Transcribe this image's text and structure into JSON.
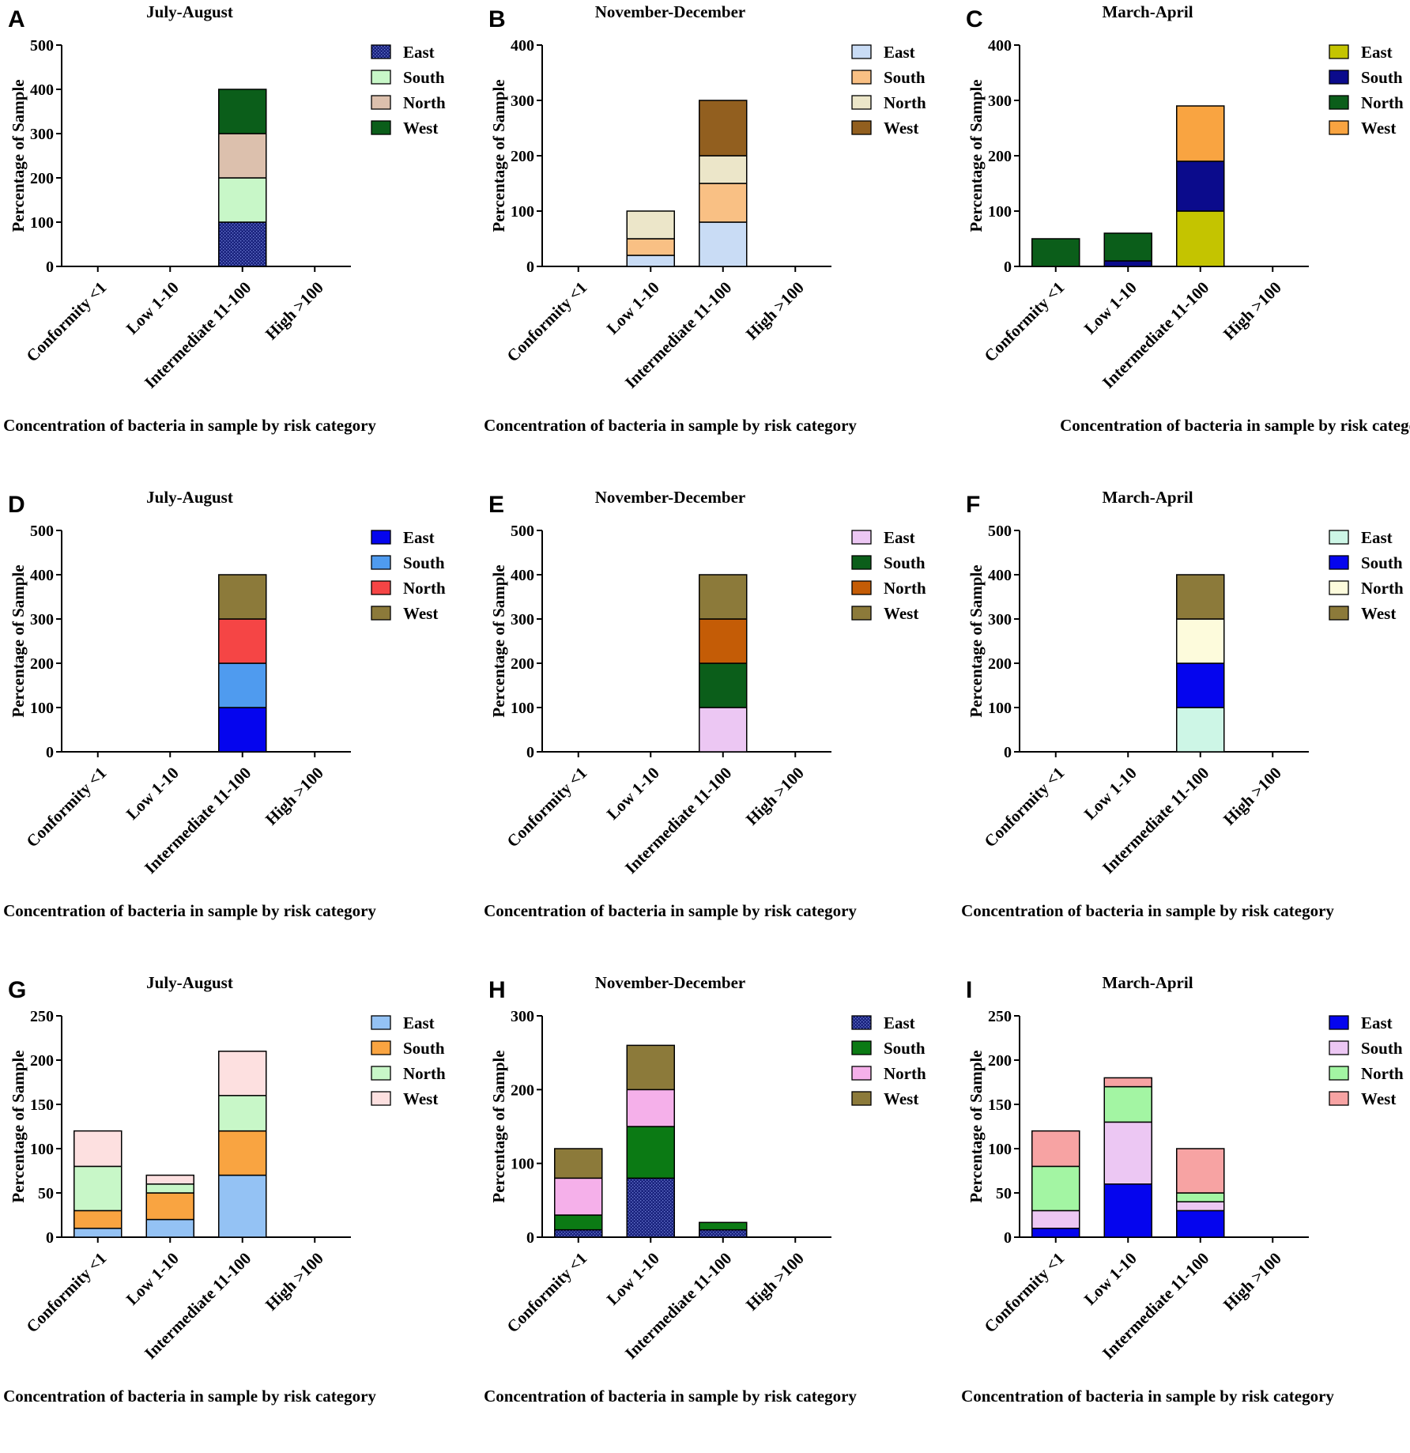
{
  "chart_data": [
    {
      "letter": "A",
      "type": "bar",
      "stacked": true,
      "title": "July-August",
      "xlabel": "Concentration of bacteria in sample by risk category",
      "ylabel": "Percentage of Sample",
      "ylim": [
        0,
        500
      ],
      "yticks": [
        "0",
        "100",
        "200",
        "300",
        "400",
        "500"
      ],
      "categories": [
        "Conformity <1",
        "Low 1-10",
        "Intermediate 11-100",
        "High >100"
      ],
      "legend_position": "top-right",
      "series": [
        {
          "name": "East",
          "color": "#1a237e",
          "pattern": "dots",
          "values": [
            0,
            0,
            100,
            0
          ]
        },
        {
          "name": "South",
          "color": "#c8f7c8",
          "values": [
            0,
            0,
            100,
            0
          ]
        },
        {
          "name": "North",
          "color": "#dcc0ad",
          "values": [
            0,
            0,
            100,
            0
          ]
        },
        {
          "name": "West",
          "color": "#0b5e1a",
          "values": [
            0,
            0,
            100,
            0
          ]
        }
      ]
    },
    {
      "letter": "B",
      "type": "bar",
      "stacked": true,
      "title": "November-December",
      "xlabel": "Concentration of bacteria in sample by risk category",
      "ylabel": "Percentage of Sample",
      "ylim": [
        0,
        400
      ],
      "yticks": [
        "0",
        "100",
        "200",
        "300",
        "400"
      ],
      "categories": [
        "Conformity <1",
        "Low 1-10",
        "Intermediate 11-100",
        "High >100"
      ],
      "legend_position": "top-right",
      "series": [
        {
          "name": "East",
          "color": "#c9dcf5",
          "values": [
            0,
            20,
            80,
            0
          ]
        },
        {
          "name": "South",
          "color": "#f9c084",
          "values": [
            0,
            30,
            70,
            0
          ]
        },
        {
          "name": "North",
          "color": "#ece6c9",
          "values": [
            0,
            50,
            50,
            0
          ]
        },
        {
          "name": "West",
          "color": "#925f1f",
          "values": [
            0,
            0,
            100,
            0
          ]
        }
      ]
    },
    {
      "letter": "C",
      "type": "bar",
      "stacked": true,
      "title": "March-April",
      "xlabel": "Concentration of bacteria in sample by risk category",
      "ylabel": "Percentage of Sample",
      "ylim": [
        0,
        400
      ],
      "yticks": [
        "0",
        "100",
        "200",
        "300",
        "400"
      ],
      "categories": [
        "Conformity <1",
        "Low 1-10",
        "Intermediate 11-100",
        "High >100"
      ],
      "legend_position": "top-right",
      "series": [
        {
          "name": "East",
          "color": "#c4c400",
          "values": [
            0,
            0,
            100,
            0
          ]
        },
        {
          "name": "South",
          "color": "#0b0b8c",
          "values": [
            0,
            10,
            90,
            0
          ]
        },
        {
          "name": "North",
          "color": "#0b5e1a",
          "values": [
            50,
            50,
            0,
            0
          ]
        },
        {
          "name": "West",
          "color": "#f9a441",
          "values": [
            0,
            0,
            100,
            0
          ]
        }
      ]
    },
    {
      "letter": "D",
      "type": "bar",
      "stacked": true,
      "title": "July-August",
      "xlabel": "Concentration of bacteria in sample by risk category",
      "ylabel": "Percentage of Sample",
      "ylim": [
        0,
        500
      ],
      "yticks": [
        "0",
        "100",
        "200",
        "300",
        "400",
        "500"
      ],
      "categories": [
        "Conformity <1",
        "Low 1-10",
        "Intermediate 11-100",
        "High >100"
      ],
      "legend_position": "top-right",
      "series": [
        {
          "name": "East",
          "color": "#0505ee",
          "values": [
            0,
            0,
            100,
            0
          ]
        },
        {
          "name": "South",
          "color": "#4f9bef",
          "values": [
            0,
            0,
            100,
            0
          ]
        },
        {
          "name": "North",
          "color": "#f54545",
          "values": [
            0,
            0,
            100,
            0
          ]
        },
        {
          "name": "West",
          "color": "#8c7a3a",
          "values": [
            0,
            0,
            100,
            0
          ]
        }
      ]
    },
    {
      "letter": "E",
      "type": "bar",
      "stacked": true,
      "title": "November-December",
      "xlabel": "Concentration of bacteria in sample by risk category",
      "ylabel": "Percentage of Sample",
      "ylim": [
        0,
        500
      ],
      "yticks": [
        "0",
        "100",
        "200",
        "300",
        "400",
        "500"
      ],
      "categories": [
        "Conformity <1",
        "Low 1-10",
        "Intermediate 11-100",
        "High >100"
      ],
      "legend_position": "top-right",
      "series": [
        {
          "name": "East",
          "color": "#ecc7f3",
          "values": [
            0,
            0,
            100,
            0
          ]
        },
        {
          "name": "South",
          "color": "#0b5e1a",
          "values": [
            0,
            0,
            100,
            0
          ]
        },
        {
          "name": "North",
          "color": "#c45c06",
          "values": [
            0,
            0,
            100,
            0
          ]
        },
        {
          "name": "West",
          "color": "#8c7a3a",
          "values": [
            0,
            0,
            100,
            0
          ]
        }
      ]
    },
    {
      "letter": "F",
      "type": "bar",
      "stacked": true,
      "title": "March-April",
      "xlabel": "Concentration of bacteria in sample by risk category",
      "ylabel": "Percentage of Sample",
      "ylim": [
        0,
        500
      ],
      "yticks": [
        "0",
        "100",
        "200",
        "300",
        "400",
        "500"
      ],
      "categories": [
        "Conformity <1",
        "Low 1-10",
        "Intermediate 11-100",
        "High >100"
      ],
      "legend_position": "top-right",
      "series": [
        {
          "name": "East",
          "color": "#cdf6e6",
          "values": [
            0,
            0,
            100,
            0
          ]
        },
        {
          "name": "South",
          "color": "#0505ee",
          "values": [
            0,
            0,
            100,
            0
          ]
        },
        {
          "name": "North",
          "color": "#fdfbdc",
          "values": [
            0,
            0,
            100,
            0
          ]
        },
        {
          "name": "West",
          "color": "#8c7a3a",
          "values": [
            0,
            0,
            100,
            0
          ]
        }
      ]
    },
    {
      "letter": "G",
      "type": "bar",
      "stacked": true,
      "title": "July-August",
      "xlabel": "Concentration of bacteria in sample by risk category",
      "ylabel": "Percentage of Sample",
      "ylim": [
        0,
        250
      ],
      "yticks": [
        "0",
        "50",
        "100",
        "150",
        "200",
        "250"
      ],
      "categories": [
        "Conformity <1",
        "Low 1-10",
        "Intermediate 11-100",
        "High >100"
      ],
      "legend_position": "top-right",
      "series": [
        {
          "name": "East",
          "color": "#94c2f4",
          "values": [
            10,
            20,
            70,
            0
          ]
        },
        {
          "name": "South",
          "color": "#f9a441",
          "values": [
            20,
            30,
            50,
            0
          ]
        },
        {
          "name": "North",
          "color": "#c8f7c8",
          "values": [
            50,
            10,
            40,
            0
          ]
        },
        {
          "name": "West",
          "color": "#fde0e0",
          "values": [
            40,
            10,
            50,
            0
          ]
        }
      ]
    },
    {
      "letter": "H",
      "type": "bar",
      "stacked": true,
      "title": "November-December",
      "xlabel": "Concentration of bacteria in sample by risk category",
      "ylabel": "Percentage of Sample",
      "ylim": [
        0,
        300
      ],
      "yticks": [
        "0",
        "100",
        "200",
        "300"
      ],
      "categories": [
        "Conformity <1",
        "Low 1-10",
        "Intermediate 11-100",
        "High >100"
      ],
      "legend_position": "top-right",
      "series": [
        {
          "name": "East",
          "color": "#1a237e",
          "pattern": "dots",
          "values": [
            10,
            80,
            10,
            0
          ]
        },
        {
          "name": "South",
          "color": "#0b7a14",
          "values": [
            20,
            70,
            10,
            0
          ]
        },
        {
          "name": "North",
          "color": "#f5b0ea",
          "values": [
            50,
            50,
            0,
            0
          ]
        },
        {
          "name": "West",
          "color": "#8c7a3a",
          "values": [
            40,
            60,
            0,
            0
          ]
        }
      ]
    },
    {
      "letter": "I",
      "type": "bar",
      "stacked": true,
      "title": "March-April",
      "xlabel": "Concentration of bacteria in sample by risk category",
      "ylabel": "Percentage of Sample",
      "ylim": [
        0,
        250
      ],
      "yticks": [
        "0",
        "50",
        "100",
        "150",
        "200",
        "250"
      ],
      "categories": [
        "Conformity <1",
        "Low 1-10",
        "Intermediate 11-100",
        "High >100"
      ],
      "legend_position": "top-right",
      "series": [
        {
          "name": "East",
          "color": "#0505ee",
          "values": [
            10,
            60,
            30,
            0
          ]
        },
        {
          "name": "South",
          "color": "#ecc7f3",
          "values": [
            20,
            70,
            10,
            0
          ]
        },
        {
          "name": "North",
          "color": "#a3f5a3",
          "values": [
            50,
            40,
            10,
            0
          ]
        },
        {
          "name": "West",
          "color": "#f7a3a3",
          "values": [
            40,
            10,
            50,
            0
          ]
        }
      ]
    }
  ]
}
